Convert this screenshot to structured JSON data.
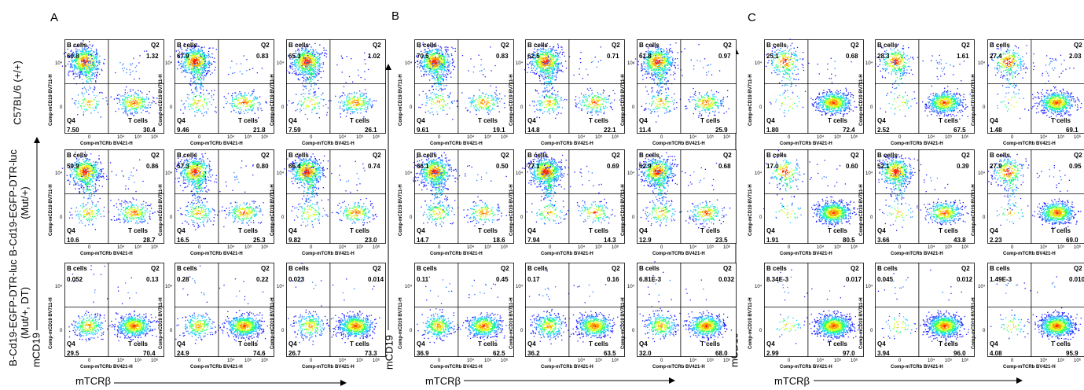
{
  "panels": [
    {
      "letter": "A",
      "row_labels": [
        "C57BL/6 (+/+)",
        "B-Cd19-EGFP-DTR-luc\n(Mut/+)",
        "B-Cd19-EGFP-DTR-luc\n(Mut/+, DT)"
      ],
      "y_axis_word": "mCD19",
      "x_axis_word": "mTCRβ"
    },
    {
      "letter": "B",
      "y_axis_word": "mCD19",
      "x_axis_word": "mTCRβ"
    },
    {
      "letter": "C",
      "y_axis_word": "mCD19",
      "x_axis_word": "mTCRβ"
    }
  ],
  "plot_text": {
    "q1_label": "B cells",
    "q2_label": "Q2",
    "q4_label": "Q4",
    "q3_label": "T cells",
    "x_axis_label": "Comp-mTCRb BV421-H",
    "y_axis_label": "Comp-mCD19 BV711-H",
    "x_ticks": [
      "0",
      "10⁴",
      "10⁵",
      "10⁶"
    ],
    "y_ticks": [
      "0",
      "10⁴"
    ]
  },
  "chart_data": [
    {
      "type": "scatter",
      "panel": "A",
      "rows": [
        [
          {
            "b": "60.8",
            "q2": "1.32",
            "q4": "7.50",
            "t": "30.4"
          },
          {
            "b": "67.9",
            "q2": "0.83",
            "q4": "9.46",
            "t": "21.8"
          },
          {
            "b": "65.3",
            "q2": "1.02",
            "q4": "7.59",
            "t": "26.1"
          }
        ],
        [
          {
            "b": "59.9",
            "q2": "0.86",
            "q4": "10.6",
            "t": "28.7"
          },
          {
            "b": "57.3",
            "q2": "0.80",
            "q4": "16.5",
            "t": "25.3"
          },
          {
            "b": "66.4",
            "q2": "0.74",
            "q4": "9.82",
            "t": "23.0"
          }
        ],
        [
          {
            "b": "0.052",
            "q2": "0.13",
            "q4": "29.5",
            "t": "70.4"
          },
          {
            "b": "0.28",
            "q2": "0.22",
            "q4": "24.9",
            "t": "74.6"
          },
          {
            "b": "0.023",
            "q2": "0.014",
            "q4": "26.7",
            "t": "73.3"
          }
        ]
      ]
    },
    {
      "type": "scatter",
      "panel": "B",
      "rows": [
        [
          {
            "b": "70.5",
            "q2": "0.83",
            "q4": "9.61",
            "t": "19.1"
          },
          {
            "b": "62.5",
            "q2": "0.71",
            "q4": "14.8",
            "t": "22.1"
          },
          {
            "b": "61.8",
            "q2": "0.97",
            "q4": "11.4",
            "t": "25.9"
          }
        ],
        [
          {
            "b": "66.1",
            "q2": "0.50",
            "q4": "14.7",
            "t": "18.6"
          },
          {
            "b": "77.1",
            "q2": "0.69",
            "q4": "7.94",
            "t": "14.3"
          },
          {
            "b": "62.9",
            "q2": "0.68",
            "q4": "12.9",
            "t": "23.5"
          }
        ],
        [
          {
            "b": "0.11",
            "q2": "0.45",
            "q4": "36.9",
            "t": "62.5"
          },
          {
            "b": "0.17",
            "q2": "0.16",
            "q4": "36.2",
            "t": "63.5"
          },
          {
            "b": "6.81E-3",
            "q2": "0.032",
            "q4": "32.0",
            "t": "68.0"
          }
        ]
      ]
    },
    {
      "type": "scatter",
      "panel": "C",
      "rows": [
        [
          {
            "b": "25.1",
            "q2": "0.68",
            "q4": "1.80",
            "t": "72.4"
          },
          {
            "b": "28.3",
            "q2": "1.61",
            "q4": "2.52",
            "t": "67.5"
          },
          {
            "b": "27.4",
            "q2": "2.03",
            "q4": "1.48",
            "t": "69.1"
          }
        ],
        [
          {
            "b": "17.0",
            "q2": "0.60",
            "q4": "1.91",
            "t": "80.5"
          },
          {
            "b": "52.1",
            "q2": "0.39",
            "q4": "3.66",
            "t": "43.8"
          },
          {
            "b": "27.9",
            "q2": "0.95",
            "q4": "2.23",
            "t": "69.0"
          }
        ],
        [
          {
            "b": "8.34E-3",
            "q2": "0.017",
            "q4": "2.99",
            "t": "97.0"
          },
          {
            "b": "0.045",
            "q2": "0.012",
            "q4": "3.94",
            "t": "96.0"
          },
          {
            "b": "1.49E-3",
            "q2": "0.010",
            "q4": "4.08",
            "t": "95.9"
          }
        ]
      ]
    }
  ]
}
